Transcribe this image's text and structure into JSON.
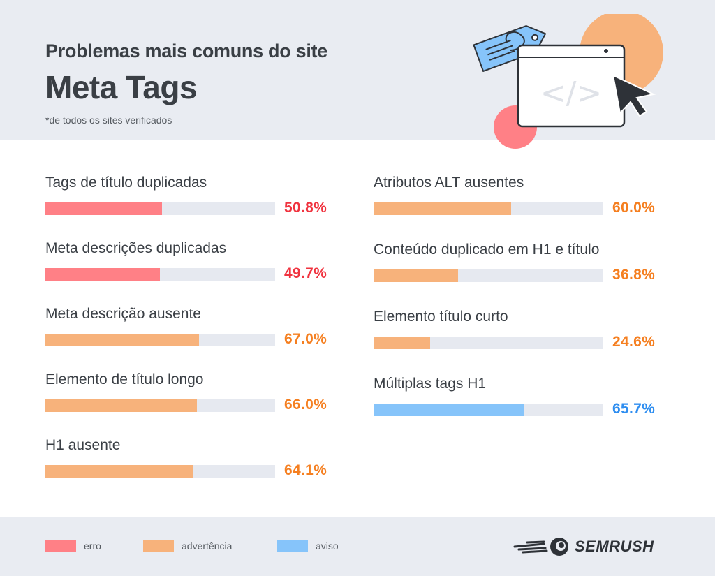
{
  "header": {
    "kicker": "Problemas mais comuns do site",
    "title": "Meta Tags",
    "note": "*de todos os sites verificados"
  },
  "colors": {
    "erro": "#ff8086",
    "advertencia": "#f7b27b",
    "aviso": "#86c4fa",
    "erro_text": "#f0333f",
    "advertencia_text": "#f57f20",
    "aviso_text": "#2f8ef0",
    "track": "#e6e9f0"
  },
  "chart_data": {
    "type": "bar",
    "orientation": "horizontal",
    "xlim": [
      0,
      100
    ],
    "unit": "%",
    "items": [
      {
        "label": "Tags de título duplicadas",
        "value": 50.8,
        "display": "50.8%",
        "category": "erro"
      },
      {
        "label": "Meta descrições duplicadas",
        "value": 49.7,
        "display": "49.7%",
        "category": "erro"
      },
      {
        "label": "Meta descrição ausente",
        "value": 67.0,
        "display": "67.0%",
        "category": "advertencia"
      },
      {
        "label": "Elemento de título longo",
        "value": 66.0,
        "display": "66.0%",
        "category": "advertencia"
      },
      {
        "label": "H1 ausente",
        "value": 64.1,
        "display": "64.1%",
        "category": "advertencia"
      },
      {
        "label": "Atributos ALT ausentes",
        "value": 60.0,
        "display": "60.0%",
        "category": "advertencia"
      },
      {
        "label": "Conteúdo duplicado em H1 e título",
        "value": 36.8,
        "display": "36.8%",
        "category": "advertencia"
      },
      {
        "label": "Elemento título curto",
        "value": 24.6,
        "display": "24.6%",
        "category": "advertencia"
      },
      {
        "label": "Múltiplas tags H1",
        "value": 65.7,
        "display": "65.7%",
        "category": "aviso"
      }
    ]
  },
  "legend": [
    {
      "key": "erro",
      "label": "erro"
    },
    {
      "key": "advertencia",
      "label": "advertência"
    },
    {
      "key": "aviso",
      "label": "aviso"
    }
  ],
  "logo": {
    "text": "SEMRUSH"
  }
}
